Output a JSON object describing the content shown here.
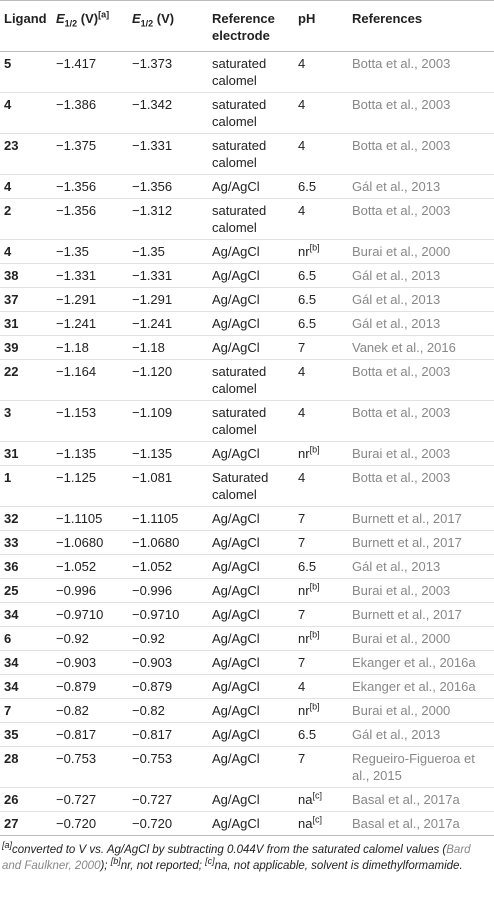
{
  "table": {
    "header": {
      "ligand": "Ligand",
      "e_sat": {
        "sym": "E",
        "sub": "1/2",
        "unit": " (V)",
        "sup": "[a]"
      },
      "e_agcl": {
        "sym": "E",
        "sub": "1/2",
        "unit": " (V)"
      },
      "electrode": "Reference electrode",
      "ph": "pH",
      "ref": "References"
    },
    "rows": [
      {
        "ligand": "5",
        "e_sat": "−1.417",
        "e_agcl": "−1.373",
        "electrode": "saturated calomel",
        "ph": "4",
        "ref": "Botta et al., 2003"
      },
      {
        "ligand": "4",
        "e_sat": "−1.386",
        "e_agcl": "−1.342",
        "electrode": "saturated calomel",
        "ph": "4",
        "ref": "Botta et al., 2003"
      },
      {
        "ligand": "23",
        "e_sat": "−1.375",
        "e_agcl": "−1.331",
        "electrode": "saturated calomel",
        "ph": "4",
        "ref": "Botta et al., 2003"
      },
      {
        "ligand": "4",
        "e_sat": "−1.356",
        "e_agcl": "−1.356",
        "electrode": "Ag/AgCl",
        "ph": "6.5",
        "ref": "Gál et al., 2013"
      },
      {
        "ligand": "2",
        "e_sat": "−1.356",
        "e_agcl": "−1.312",
        "electrode": "saturated calomel",
        "ph": "4",
        "ref": "Botta et al., 2003"
      },
      {
        "ligand": "4",
        "e_sat": "−1.35",
        "e_agcl": "−1.35",
        "electrode": "Ag/AgCl",
        "ph": "nr",
        "ph_note": "[b]",
        "ref": "Burai et al., 2000"
      },
      {
        "ligand": "38",
        "e_sat": "−1.331",
        "e_agcl": "−1.331",
        "electrode": "Ag/AgCl",
        "ph": "6.5",
        "ref": "Gál et al., 2013"
      },
      {
        "ligand": "37",
        "e_sat": "−1.291",
        "e_agcl": "−1.291",
        "electrode": "Ag/AgCl",
        "ph": "6.5",
        "ref": "Gál et al., 2013"
      },
      {
        "ligand": "31",
        "e_sat": "−1.241",
        "e_agcl": "−1.241",
        "electrode": "Ag/AgCl",
        "ph": "6.5",
        "ref": "Gál et al., 2013"
      },
      {
        "ligand": "39",
        "e_sat": "−1.18",
        "e_agcl": "−1.18",
        "electrode": "Ag/AgCl",
        "ph": "7",
        "ref": "Vanek et al., 2016"
      },
      {
        "ligand": "22",
        "e_sat": "−1.164",
        "e_agcl": "−1.120",
        "electrode": "saturated calomel",
        "ph": "4",
        "ref": "Botta et al., 2003"
      },
      {
        "ligand": "3",
        "e_sat": "−1.153",
        "e_agcl": "−1.109",
        "electrode": "saturated calomel",
        "ph": "4",
        "ref": "Botta et al., 2003"
      },
      {
        "ligand": "31",
        "e_sat": "−1.135",
        "e_agcl": "−1.135",
        "electrode": "Ag/AgCl",
        "ph": "nr",
        "ph_note": "[b]",
        "ref": "Burai et al., 2003"
      },
      {
        "ligand": "1",
        "e_sat": "−1.125",
        "e_agcl": "−1.081",
        "electrode": "Saturated calomel",
        "ph": "4",
        "ref": "Botta et al., 2003"
      },
      {
        "ligand": "32",
        "e_sat": "−1.1105",
        "e_agcl": "−1.1105",
        "electrode": "Ag/AgCl",
        "ph": "7",
        "ref": "Burnett et al., 2017"
      },
      {
        "ligand": "33",
        "e_sat": "−1.0680",
        "e_agcl": "−1.0680",
        "electrode": "Ag/AgCl",
        "ph": "7",
        "ref": "Burnett et al., 2017"
      },
      {
        "ligand": "36",
        "e_sat": "−1.052",
        "e_agcl": "−1.052",
        "electrode": "Ag/AgCl",
        "ph": "6.5",
        "ref": "Gál et al., 2013"
      },
      {
        "ligand": "25",
        "e_sat": "−0.996",
        "e_agcl": "−0.996",
        "electrode": "Ag/AgCl",
        "ph": "nr",
        "ph_note": "[b]",
        "ref": "Burai et al., 2003"
      },
      {
        "ligand": "34",
        "e_sat": "−0.9710",
        "e_agcl": "−0.9710",
        "electrode": "Ag/AgCl",
        "ph": "7",
        "ref": "Burnett et al., 2017"
      },
      {
        "ligand": "6",
        "e_sat": "−0.92",
        "e_agcl": "−0.92",
        "electrode": "Ag/AgCl",
        "ph": "nr",
        "ph_note": "[b]",
        "ref": "Burai et al., 2000"
      },
      {
        "ligand": "34",
        "e_sat": "−0.903",
        "e_agcl": "−0.903",
        "electrode": "Ag/AgCl",
        "ph": "7",
        "ref": "Ekanger et al., 2016a"
      },
      {
        "ligand": "34",
        "e_sat": "−0.879",
        "e_agcl": "−0.879",
        "electrode": "Ag/AgCl",
        "ph": "4",
        "ref": "Ekanger et al., 2016a"
      },
      {
        "ligand": "7",
        "e_sat": "−0.82",
        "e_agcl": "−0.82",
        "electrode": "Ag/AgCl",
        "ph": "nr",
        "ph_note": "[b]",
        "ref": "Burai et al., 2000"
      },
      {
        "ligand": "35",
        "e_sat": "−0.817",
        "e_agcl": "−0.817",
        "electrode": "Ag/AgCl",
        "ph": "6.5",
        "ref": "Gál et al., 2013"
      },
      {
        "ligand": "28",
        "e_sat": "−0.753",
        "e_agcl": "−0.753",
        "electrode": "Ag/AgCl",
        "ph": "7",
        "ref": "Regueiro-Figueroa et al., 2015"
      },
      {
        "ligand": "26",
        "e_sat": "−0.727",
        "e_agcl": "−0.727",
        "electrode": "Ag/AgCl",
        "ph": "na",
        "ph_note": "[c]",
        "ref": "Basal et al., 2017a"
      },
      {
        "ligand": "27",
        "e_sat": "−0.720",
        "e_agcl": "−0.720",
        "electrode": "Ag/AgCl",
        "ph": "na",
        "ph_note": "[c]",
        "ref": "Basal et al., 2017a"
      }
    ]
  },
  "footnote": [
    {
      "kind": "sup",
      "text": "[a]"
    },
    {
      "kind": "text",
      "text": "converted to V vs. Ag/AgCl by subtracting 0.044V from the saturated calomel values ("
    },
    {
      "kind": "link",
      "text": "Bard and Faulkner, 2000"
    },
    {
      "kind": "text",
      "text": "); "
    },
    {
      "kind": "sup",
      "text": "[b]"
    },
    {
      "kind": "text",
      "text": "nr, not reported; "
    },
    {
      "kind": "sup",
      "text": "[c]"
    },
    {
      "kind": "text",
      "text": "na, not applicable, solvent is dimethylformamide."
    }
  ]
}
